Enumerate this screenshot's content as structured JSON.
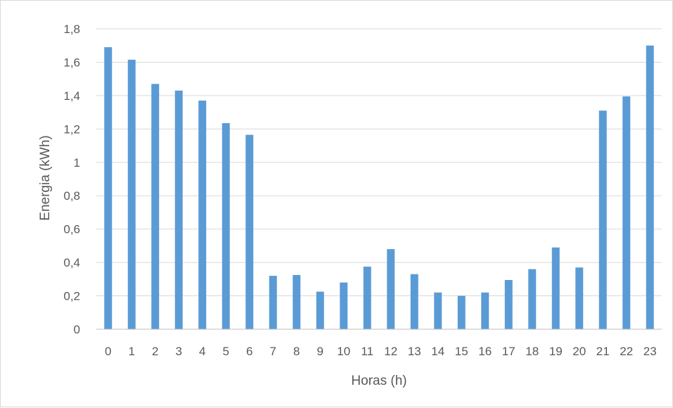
{
  "chart_data": {
    "type": "bar",
    "title": "",
    "xlabel": "Horas (h)",
    "ylabel": "Energia (kWh)",
    "ylim": [
      0,
      1.8
    ],
    "ytick_values": [
      0,
      0.2,
      0.4,
      0.6,
      0.8,
      1,
      1.2,
      1.4,
      1.6,
      1.8
    ],
    "ytick_labels": [
      "0",
      "0,2",
      "0,4",
      "0,6",
      "0,8",
      "1",
      "1,2",
      "1,4",
      "1,6",
      "1,8"
    ],
    "categories": [
      "0",
      "1",
      "2",
      "3",
      "4",
      "5",
      "6",
      "7",
      "8",
      "9",
      "10",
      "11",
      "12",
      "13",
      "14",
      "15",
      "16",
      "17",
      "18",
      "19",
      "20",
      "21",
      "22",
      "23"
    ],
    "values": [
      1.69,
      1.615,
      1.47,
      1.43,
      1.37,
      1.235,
      1.165,
      0.32,
      0.325,
      0.225,
      0.28,
      0.375,
      0.48,
      0.33,
      0.22,
      0.2,
      0.22,
      0.295,
      0.36,
      0.49,
      0.37,
      1.31,
      1.395,
      1.7
    ],
    "grid": true,
    "legend": false,
    "bar_color": "#5b9bd5",
    "gridline_color": "#d9d9d9",
    "axis_color": "#bfbfbf",
    "text_color": "#595959"
  }
}
